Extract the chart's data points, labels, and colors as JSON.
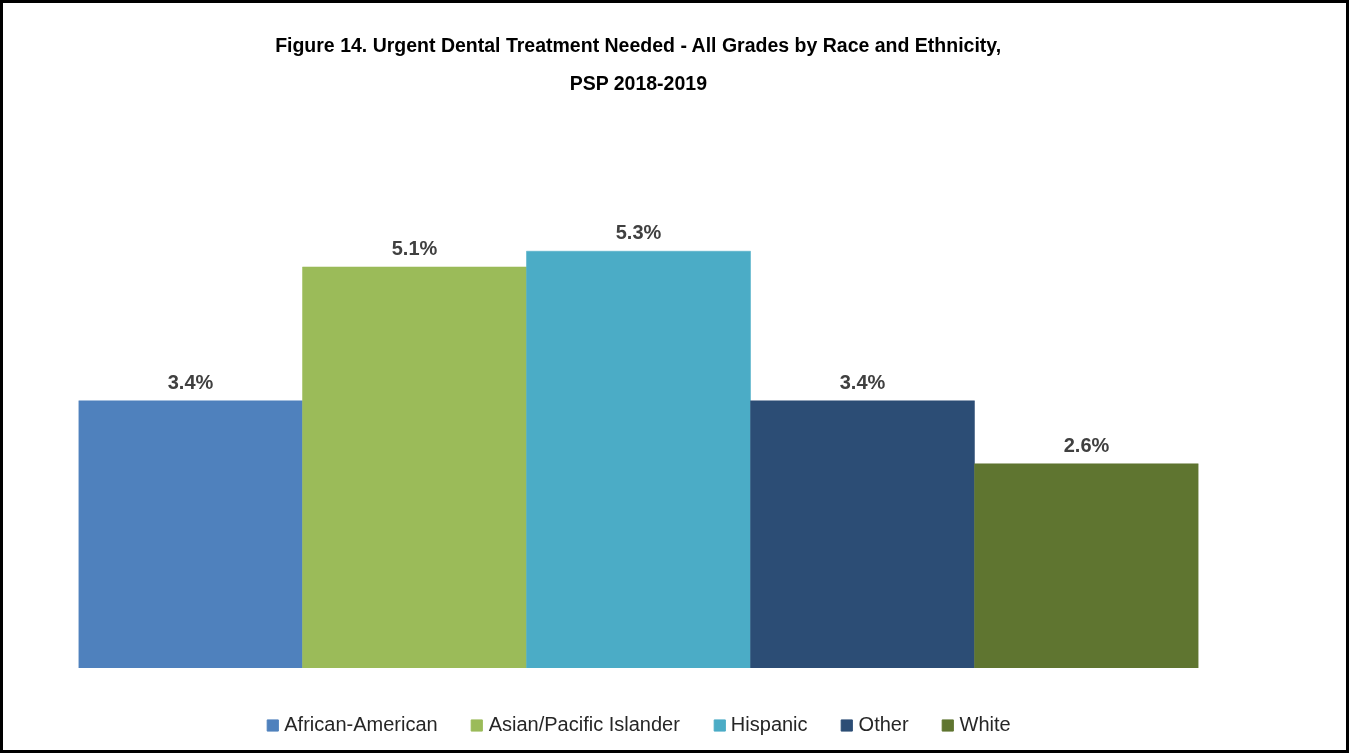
{
  "chart_data": {
    "type": "bar",
    "title": "Figure 14. Urgent Dental Treatment Needed - All Grades by Race and Ethnicity,\nPSP 2018-2019",
    "categories": [
      null
    ],
    "series": [
      {
        "name": "African-American",
        "color": "#4f81bd",
        "values": [
          3.4
        ],
        "value_labels": [
          "3.4%"
        ]
      },
      {
        "name": "Asian/Pacific Islander",
        "color": "#9bbb59",
        "values": [
          5.1
        ],
        "value_labels": [
          "5.1%"
        ]
      },
      {
        "name": "Hispanic",
        "color": "#4bacc6",
        "values": [
          5.3
        ],
        "value_labels": [
          "5.3%"
        ]
      },
      {
        "name": "Other",
        "color": "#2c4d75",
        "values": [
          3.4
        ],
        "value_labels": [
          "3.4%"
        ]
      },
      {
        "name": "White",
        "color": "#5f7530",
        "values": [
          2.6
        ],
        "value_labels": [
          "2.6%"
        ]
      }
    ],
    "tick_labels": false,
    "legend": "bottom"
  }
}
